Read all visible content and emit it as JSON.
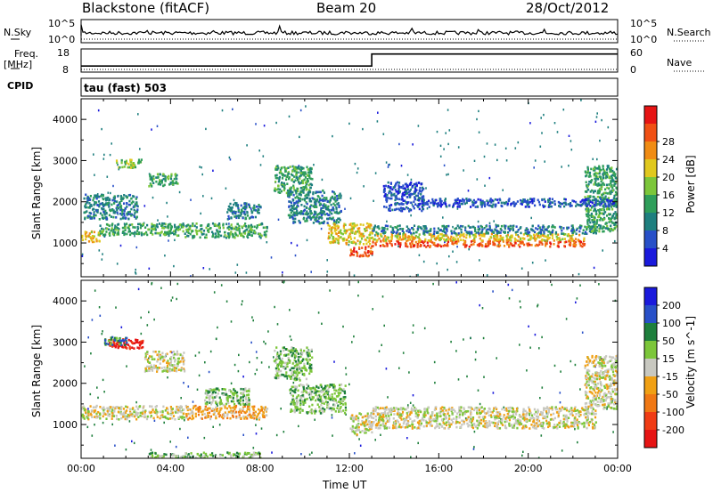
{
  "header": {
    "station": "Blackstone (fitACF)",
    "beam": "Beam 20",
    "date": "28/Oct/2012"
  },
  "side_labels": {
    "nsky": "N.Sky",
    "nsearch": "N.Search",
    "freq": "Freq.",
    "freq_unit": "[MHz]",
    "nave": "Nave",
    "cpid": "CPID"
  },
  "top_ticks": {
    "sky_hi": "10^5",
    "sky_lo": "10^0",
    "search_hi": "10^5",
    "search_lo": "10^0",
    "freq_hi": "18",
    "freq_lo": "8",
    "nave_hi": "60",
    "nave_lo": "0"
  },
  "cpid_text": "tau (fast) 503",
  "x_axis": {
    "label": "Time UT",
    "ticks": [
      "00:00",
      "04:00",
      "08:00",
      "12:00",
      "16:00",
      "20:00",
      "00:00"
    ]
  },
  "chart_data": [
    {
      "type": "heatmap",
      "quantity": "Power",
      "xlabel": "Time UT",
      "ylabel": "Slant Range [km]",
      "colorbar_label": "Power [dB]",
      "xlim_hours": [
        0,
        24
      ],
      "ylim": [
        180,
        4500
      ],
      "yticks": [
        1000,
        2000,
        3000,
        4000
      ],
      "colorbar_ticks": [
        "4",
        "8",
        "12",
        "16",
        "20",
        "24",
        "28"
      ],
      "colors": [
        "#1a1adc",
        "#2850c8",
        "#1e7f7f",
        "#2f9e5a",
        "#7cc63a",
        "#e0c81e",
        "#f08c14",
        "#f05014",
        "#e61414"
      ],
      "regions": [
        {
          "t": [
            0.0,
            0.8
          ],
          "r": [
            1050,
            1320
          ],
          "level": 5
        },
        {
          "t": [
            0.8,
            4.6
          ],
          "r": [
            1200,
            1500
          ],
          "level": 3
        },
        {
          "t": [
            4.6,
            8.3
          ],
          "r": [
            1150,
            1500
          ],
          "level": 3
        },
        {
          "t": [
            0.1,
            2.5
          ],
          "r": [
            1600,
            2200
          ],
          "level": 2
        },
        {
          "t": [
            1.5,
            2.7
          ],
          "r": [
            2850,
            3050
          ],
          "level": 4
        },
        {
          "t": [
            3.0,
            4.3
          ],
          "r": [
            2400,
            2700
          ],
          "level": 3
        },
        {
          "t": [
            6.5,
            8.0
          ],
          "r": [
            1600,
            2000
          ],
          "level": 2
        },
        {
          "t": [
            8.6,
            10.3
          ],
          "r": [
            2200,
            2900
          ],
          "level": 3
        },
        {
          "t": [
            9.2,
            11.6
          ],
          "r": [
            1500,
            2300
          ],
          "level": 2
        },
        {
          "t": [
            11.0,
            13.0
          ],
          "r": [
            1000,
            1500
          ],
          "level": 5
        },
        {
          "t": [
            12.0,
            13.0
          ],
          "r": [
            700,
            950
          ],
          "level": 7
        },
        {
          "t": [
            13.0,
            22.5
          ],
          "r": [
            930,
            1080
          ],
          "level": 7
        },
        {
          "t": [
            13.0,
            22.5
          ],
          "r": [
            1080,
            1250
          ],
          "level": 5
        },
        {
          "t": [
            13.0,
            23.0
          ],
          "r": [
            1250,
            1450
          ],
          "level": 2
        },
        {
          "t": [
            22.5,
            24.0
          ],
          "r": [
            1300,
            2900
          ],
          "level": 3
        },
        {
          "t": [
            15.0,
            24.0
          ],
          "r": [
            1900,
            2100
          ],
          "level": 1
        },
        {
          "t": [
            13.5,
            15.3
          ],
          "r": [
            1800,
            2500
          ],
          "level": 1
        }
      ]
    },
    {
      "type": "heatmap",
      "quantity": "Velocity",
      "xlabel": "Time UT",
      "ylabel": "Slant Range [km]",
      "colorbar_label": "Velocity [m s^-1]",
      "xlim_hours": [
        0,
        24
      ],
      "ylim": [
        180,
        4500
      ],
      "yticks": [
        1000,
        2000,
        3000,
        4000
      ],
      "colorbar_ticks": [
        "200",
        "100",
        "50",
        "15",
        "-15",
        "-50",
        "-100",
        "-200"
      ],
      "colors": [
        "#1a1adc",
        "#2850c8",
        "#1e7f3c",
        "#7cc63a",
        "#c8c8c0",
        "#f0a014",
        "#f07814",
        "#f03c14",
        "#e61414"
      ],
      "regions": [
        {
          "t": [
            0.0,
            4.6
          ],
          "r": [
            1150,
            1480
          ],
          "level": 4
        },
        {
          "t": [
            4.6,
            8.3
          ],
          "r": [
            1150,
            1480
          ],
          "level": 5
        },
        {
          "t": [
            5.5,
            7.5
          ],
          "r": [
            1500,
            1900
          ],
          "level": 3
        },
        {
          "t": [
            1.2,
            2.8
          ],
          "r": [
            2850,
            3100
          ],
          "level": 8
        },
        {
          "t": [
            1.0,
            2.0
          ],
          "r": [
            2950,
            3150
          ],
          "level": 2
        },
        {
          "t": [
            2.8,
            4.6
          ],
          "r": [
            2300,
            2800
          ],
          "level": 4
        },
        {
          "t": [
            8.6,
            10.3
          ],
          "r": [
            2100,
            2900
          ],
          "level": 3
        },
        {
          "t": [
            9.3,
            11.8
          ],
          "r": [
            1300,
            2000
          ],
          "level": 3
        },
        {
          "t": [
            12.0,
            13.0
          ],
          "r": [
            780,
            1300
          ],
          "level": 4
        },
        {
          "t": [
            13.0,
            23.0
          ],
          "r": [
            930,
            1450
          ],
          "level": 4
        },
        {
          "t": [
            22.5,
            24.0
          ],
          "r": [
            1400,
            2700
          ],
          "level": 4
        },
        {
          "t": [
            3.0,
            8.0
          ],
          "r": [
            200,
            350
          ],
          "level": 3
        }
      ]
    }
  ],
  "top_series": {
    "freq_mhz": [
      [
        0,
        10.6
      ],
      [
        13.0,
        10.6
      ],
      [
        13.0,
        15.8
      ],
      [
        24,
        15.8
      ]
    ],
    "nave": [
      [
        0,
        0
      ],
      [
        24,
        0
      ]
    ]
  }
}
